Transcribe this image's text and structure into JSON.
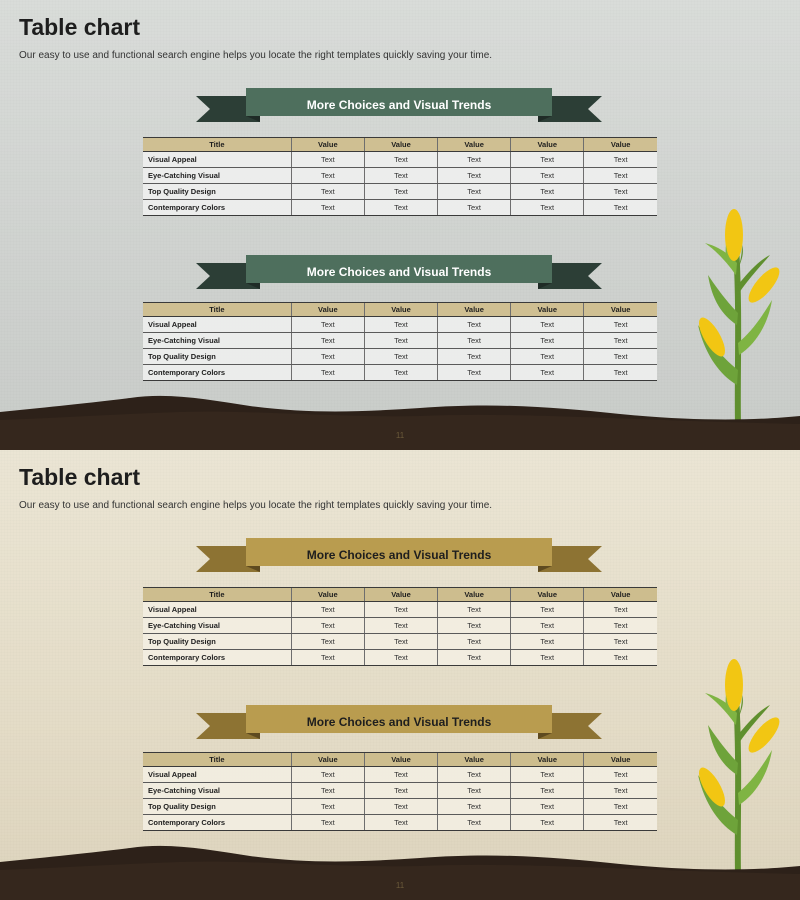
{
  "slides": [
    {
      "title": "Table chart",
      "subtitle": "Our easy to use and functional search engine helps you locate the right templates quickly saving your time.",
      "page_number": "11",
      "colors": {
        "ribbon_main": "#4e6f5d",
        "ribbon_tail": "#2c3e36",
        "ribbon_fold": "#1f2b26"
      },
      "tables": [
        {
          "heading": "More Choices and Visual Trends",
          "columns": [
            "Title",
            "Value",
            "Value",
            "Value",
            "Value",
            "Value"
          ],
          "rows": [
            [
              "Visual Appeal",
              "Text",
              "Text",
              "Text",
              "Text",
              "Text"
            ],
            [
              "Eye-Catching Visual",
              "Text",
              "Text",
              "Text",
              "Text",
              "Text"
            ],
            [
              "Top Quality Design",
              "Text",
              "Text",
              "Text",
              "Text",
              "Text"
            ],
            [
              "Contemporary Colors",
              "Text",
              "Text",
              "Text",
              "Text",
              "Text"
            ]
          ]
        },
        {
          "heading": "More Choices and Visual Trends",
          "columns": [
            "Title",
            "Value",
            "Value",
            "Value",
            "Value",
            "Value"
          ],
          "rows": [
            [
              "Visual Appeal",
              "Text",
              "Text",
              "Text",
              "Text",
              "Text"
            ],
            [
              "Eye-Catching Visual",
              "Text",
              "Text",
              "Text",
              "Text",
              "Text"
            ],
            [
              "Top Quality Design",
              "Text",
              "Text",
              "Text",
              "Text",
              "Text"
            ],
            [
              "Contemporary Colors",
              "Text",
              "Text",
              "Text",
              "Text",
              "Text"
            ]
          ]
        }
      ]
    },
    {
      "title": "Table chart",
      "subtitle": "Our easy to use and functional search engine helps you locate the right templates quickly saving your time.",
      "page_number": "11",
      "colors": {
        "ribbon_main": "#b99c4f",
        "ribbon_tail": "#8d7333",
        "ribbon_fold": "#5e4a1f"
      },
      "tables": [
        {
          "heading": "More Choices and Visual Trends",
          "columns": [
            "Title",
            "Value",
            "Value",
            "Value",
            "Value",
            "Value"
          ],
          "rows": [
            [
              "Visual Appeal",
              "Text",
              "Text",
              "Text",
              "Text",
              "Text"
            ],
            [
              "Eye-Catching Visual",
              "Text",
              "Text",
              "Text",
              "Text",
              "Text"
            ],
            [
              "Top Quality Design",
              "Text",
              "Text",
              "Text",
              "Text",
              "Text"
            ],
            [
              "Contemporary Colors",
              "Text",
              "Text",
              "Text",
              "Text",
              "Text"
            ]
          ]
        },
        {
          "heading": "More Choices and Visual Trends",
          "columns": [
            "Title",
            "Value",
            "Value",
            "Value",
            "Value",
            "Value"
          ],
          "rows": [
            [
              "Visual Appeal",
              "Text",
              "Text",
              "Text",
              "Text",
              "Text"
            ],
            [
              "Eye-Catching Visual",
              "Text",
              "Text",
              "Text",
              "Text",
              "Text"
            ],
            [
              "Top Quality Design",
              "Text",
              "Text",
              "Text",
              "Text",
              "Text"
            ],
            [
              "Contemporary Colors",
              "Text",
              "Text",
              "Text",
              "Text",
              "Text"
            ]
          ]
        }
      ]
    }
  ]
}
